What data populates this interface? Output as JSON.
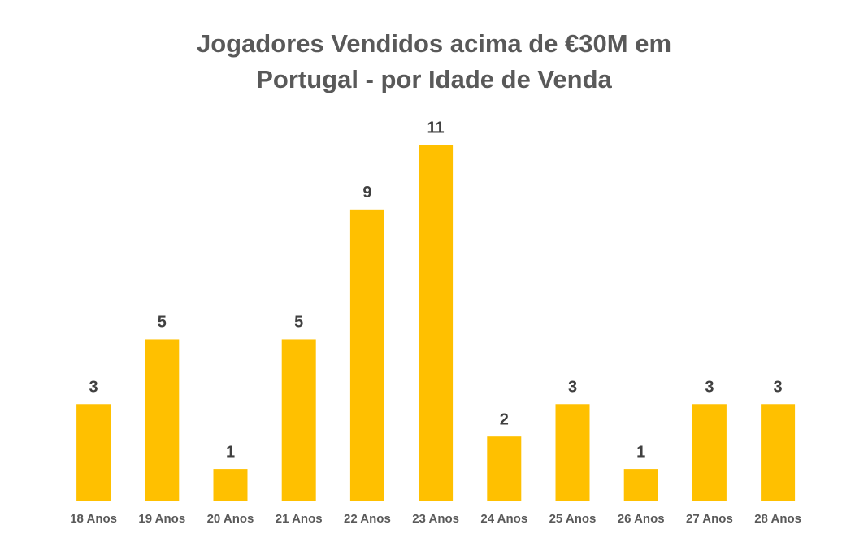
{
  "chart_data": {
    "type": "bar",
    "title": "Jogadores Vendidos acima de €30M em Portugal - por Idade de Venda",
    "categories": [
      "18 Anos",
      "19 Anos",
      "20 Anos",
      "21 Anos",
      "22 Anos",
      "23 Anos",
      "24 Anos",
      "25 Anos",
      "26 Anos",
      "27 Anos",
      "28 Anos"
    ],
    "values": [
      3,
      5,
      1,
      5,
      9,
      11,
      2,
      3,
      1,
      3,
      3
    ],
    "color": "#ffc000"
  }
}
